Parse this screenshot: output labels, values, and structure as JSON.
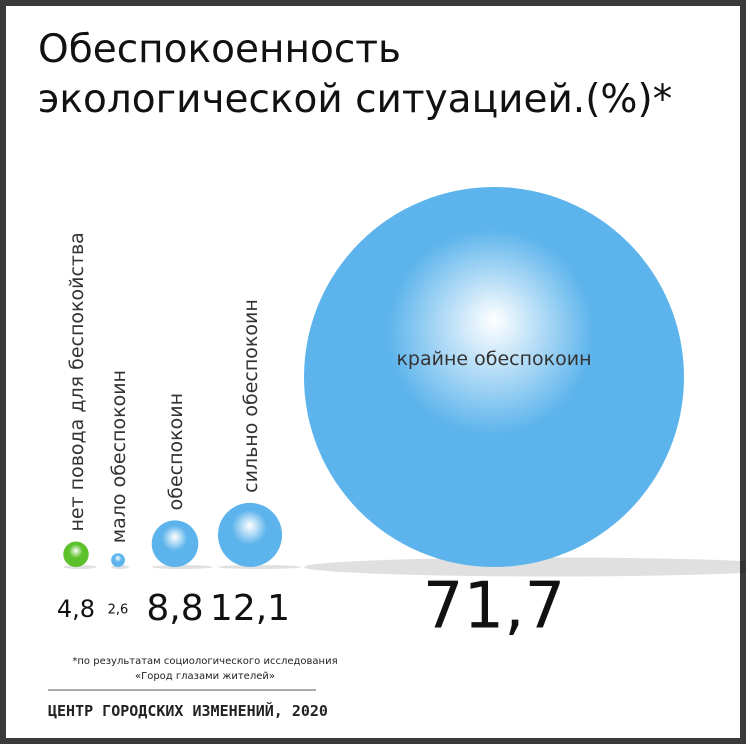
{
  "chart_data": {
    "type": "bubble",
    "title_lines": [
      "Обеспокоенность",
      "экологической ситуацией.(%)*"
    ],
    "categories": [
      "нет повода для беспокойства",
      "мало обеспокоин",
      "обеспокоин",
      "сильно обеспокоин",
      "крайне обеспокоин"
    ],
    "values": [
      4.8,
      2.6,
      8.8,
      12.1,
      71.7
    ],
    "value_labels": [
      "4,8",
      "2,6",
      "8,8",
      "12,1",
      "71,7"
    ],
    "colors": [
      "#5cc12a",
      "#5db4ec",
      "#5db4ec",
      "#5db4ec",
      "#5db4ec"
    ],
    "footnote_lines": [
      "*по результатам социологического исследования",
      "«Город глазами жителей»"
    ],
    "source": "ЦЕНТР ГОРОДСКИХ ИЗМЕНЕНИЙ, 2020"
  }
}
